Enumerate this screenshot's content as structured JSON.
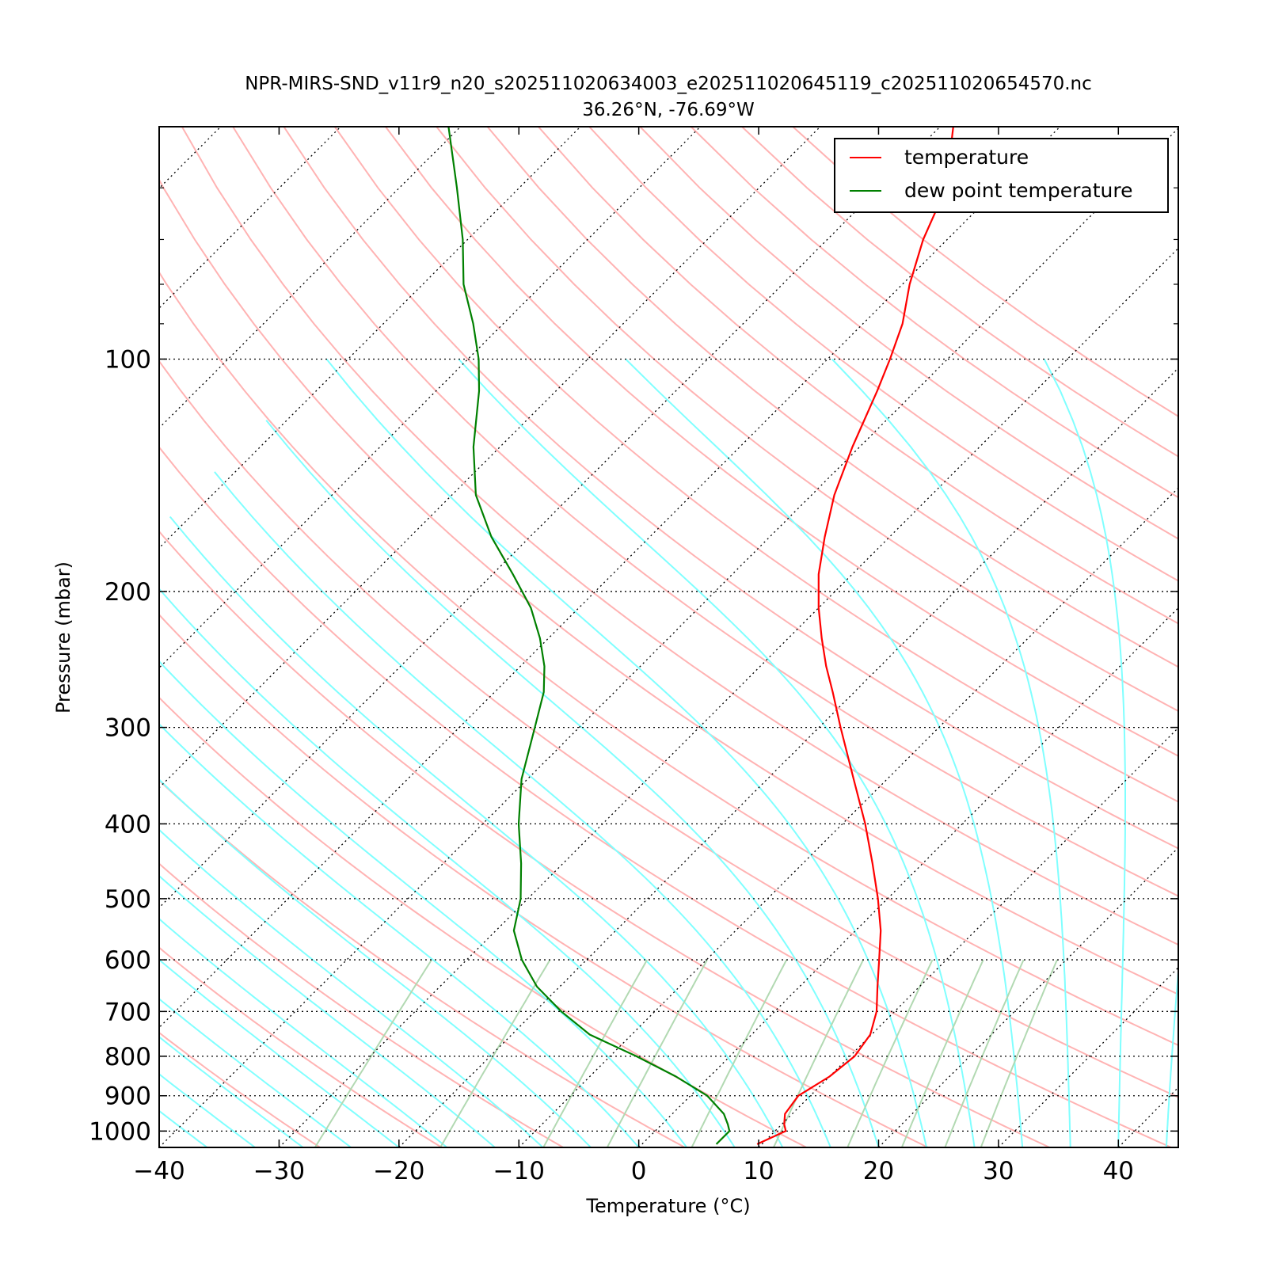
{
  "chart_data": {
    "type": "line",
    "title": "NPR-MIRS-SND_v11r9_n20_s202511020634003_e202511020645119_c202511020654570.nc",
    "subtitle": "36.26°N, -76.69°W",
    "xlabel": "Temperature (°C)",
    "ylabel": "Pressure (mbar)",
    "xlim": [
      -40,
      45
    ],
    "ylim": [
      1050,
      50
    ],
    "y_scale": "log",
    "skew": "skew-T log-P",
    "x_ticks": [
      "−40",
      "−30",
      "−20",
      "−10",
      "0",
      "10",
      "20",
      "30",
      "40"
    ],
    "y_ticks": [
      "100",
      "200",
      "300",
      "400",
      "500",
      "600",
      "700",
      "800",
      "900",
      "1000"
    ],
    "grid": true,
    "legend": "top-right",
    "series": [
      {
        "name": "temperature",
        "color": "#ff0000",
        "pressure": [
          1040,
          1000,
          980,
          950,
          900,
          850,
          800,
          750,
          700,
          650,
          600,
          550,
          500,
          450,
          400,
          350,
          300,
          270,
          250,
          230,
          210,
          190,
          170,
          150,
          130,
          110,
          100,
          90,
          80,
          70,
          60,
          50
        ],
        "values": [
          9.6,
          10.9,
          10.2,
          9.4,
          9.0,
          10.0,
          10.4,
          9.9,
          8.5,
          6.5,
          4.4,
          2.1,
          -0.8,
          -4.2,
          -8.1,
          -12.8,
          -18.2,
          -21.8,
          -24.5,
          -27.2,
          -30.0,
          -32.8,
          -35.4,
          -38.1,
          -40.6,
          -43.2,
          -44.8,
          -46.7,
          -49.4,
          -52.0,
          -54.4,
          -58.9
        ]
      },
      {
        "name": "dew point temperature",
        "color": "#008000",
        "pressure": [
          1040,
          1000,
          980,
          950,
          900,
          850,
          800,
          750,
          700,
          650,
          600,
          550,
          500,
          450,
          400,
          350,
          300,
          270,
          250,
          230,
          210,
          190,
          170,
          150,
          130,
          110,
          100,
          90,
          80,
          70,
          60,
          50
        ],
        "values": [
          6.2,
          6.2,
          5.5,
          4.3,
          1.4,
          -2.8,
          -7.8,
          -13.5,
          -17.8,
          -21.9,
          -25.4,
          -28.5,
          -30.6,
          -33.5,
          -37.0,
          -40.5,
          -43.7,
          -45.9,
          -48.0,
          -50.7,
          -54.0,
          -58.3,
          -63.2,
          -68.0,
          -72.2,
          -76.4,
          -79.1,
          -82.5,
          -86.6,
          -90.4,
          -95.2,
          -101.0
        ]
      }
    ]
  },
  "colors": {
    "dry_adiabats": "#ffb3b3",
    "moist_adiabats": "#80ffff",
    "mixing_ratio": "#b2d9b2",
    "isotherms": "#000000"
  }
}
